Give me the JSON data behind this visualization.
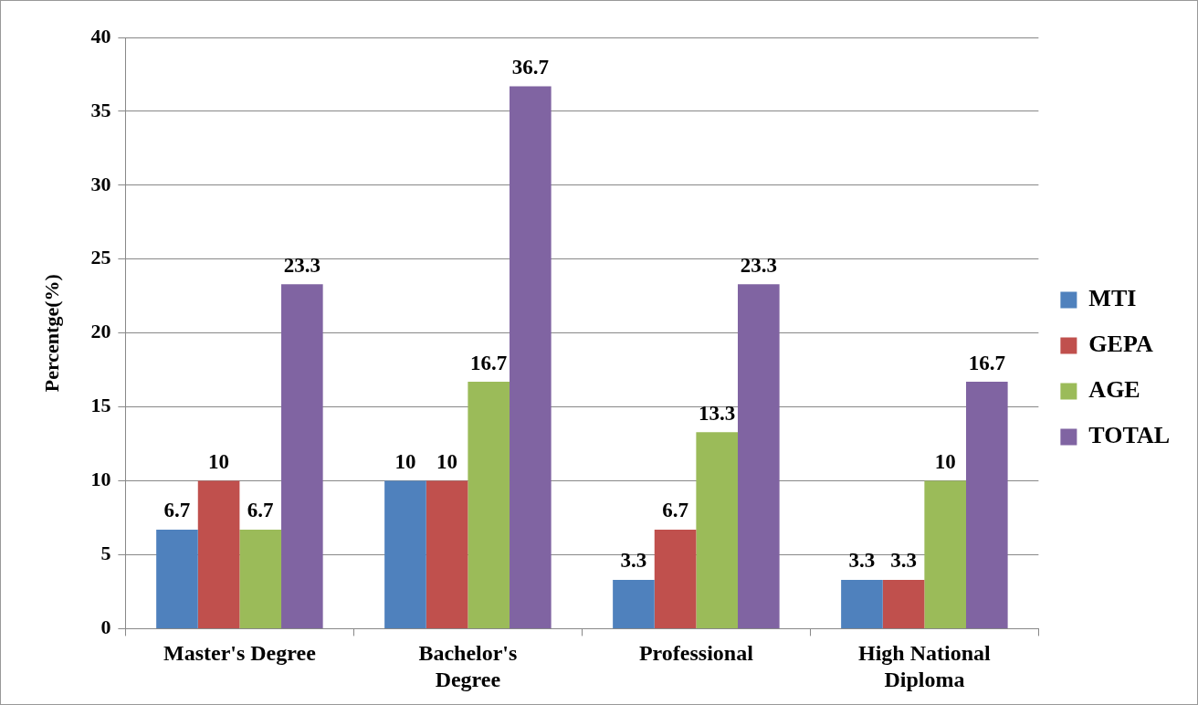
{
  "chart_data": {
    "type": "bar",
    "ylabel": "Percentge(%)",
    "categories": [
      "Master's Degree",
      "Bachelor's Degree",
      "Professional",
      "High National Diploma"
    ],
    "series": [
      {
        "name": "MTI",
        "color": "#4f81bd",
        "values": [
          6.7,
          10,
          3.3,
          3.3
        ]
      },
      {
        "name": "GEPA",
        "color": "#c0504d",
        "values": [
          10,
          10,
          6.7,
          3.3
        ]
      },
      {
        "name": "AGE",
        "color": "#9bbb59",
        "values": [
          6.7,
          16.7,
          13.3,
          10
        ]
      },
      {
        "name": "TOTAL",
        "color": "#8064a2",
        "values": [
          23.3,
          36.7,
          23.3,
          16.7
        ]
      }
    ],
    "ylim": [
      0,
      40
    ],
    "yticks": [
      0,
      5,
      10,
      15,
      20,
      25,
      30,
      35,
      40
    ],
    "grid": "y",
    "legend": "right",
    "data_labels": true
  }
}
